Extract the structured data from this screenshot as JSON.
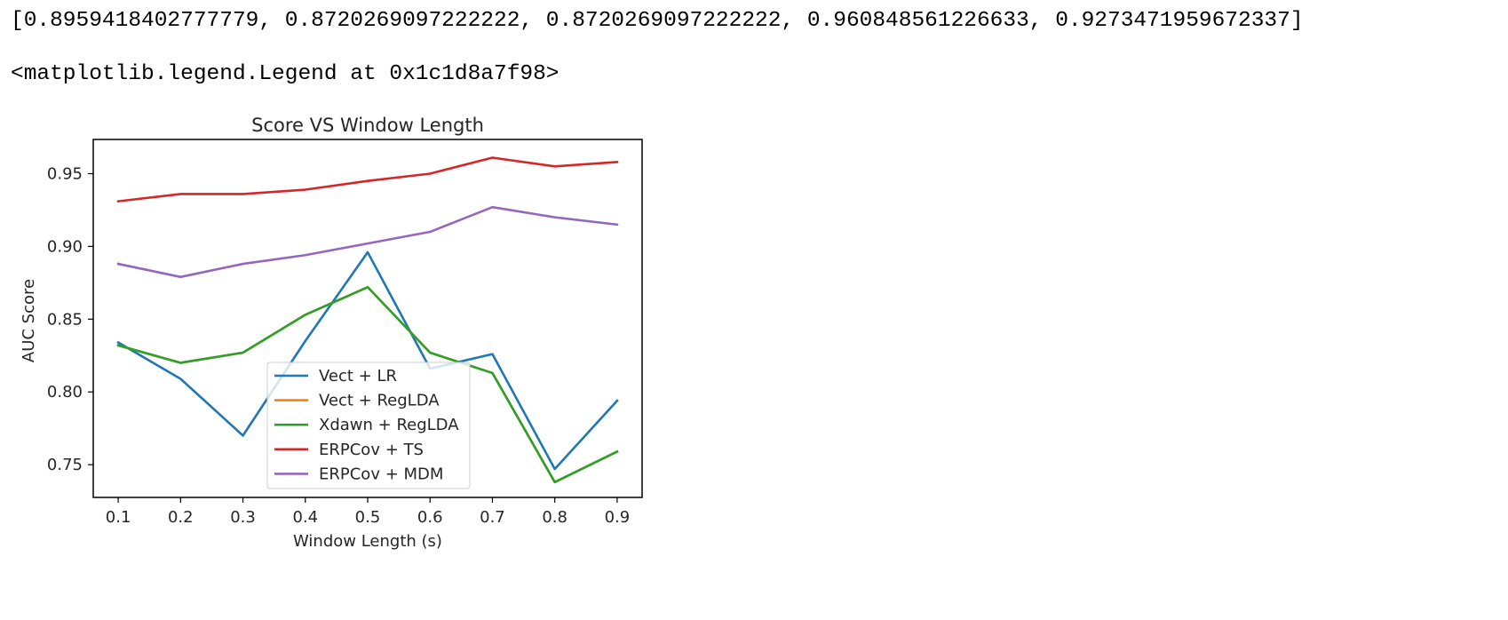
{
  "cell_output": {
    "array_line": "[0.8959418402777779, 0.8720269097222222, 0.8720269097222222, 0.960848561226633, 0.9273471959672337]",
    "repr_line": "<matplotlib.legend.Legend at 0x1c1d8a7f98>"
  },
  "chart_data": {
    "type": "line",
    "title": "Score VS Window Length",
    "xlabel": "Window Length (s)",
    "ylabel": "AUC Score",
    "x": [
      0.1,
      0.2,
      0.3,
      0.4,
      0.5,
      0.6,
      0.7,
      0.8,
      0.9
    ],
    "xticks": [
      "0.1",
      "0.2",
      "0.3",
      "0.4",
      "0.5",
      "0.6",
      "0.7",
      "0.8",
      "0.9"
    ],
    "yticks": [
      "0.75",
      "0.80",
      "0.85",
      "0.90",
      "0.95"
    ],
    "ytick_values": [
      0.75,
      0.8,
      0.85,
      0.9,
      0.95
    ],
    "xlim": [
      0.06,
      0.94
    ],
    "ylim": [
      0.7275,
      0.9735
    ],
    "grid": false,
    "legend_position": "lower-center",
    "series": [
      {
        "name": "Vect + LR",
        "color": "#1f77b4",
        "values": [
          0.834,
          0.809,
          0.77,
          0.835,
          0.896,
          0.816,
          0.826,
          0.747,
          0.794
        ]
      },
      {
        "name": "Vect + RegLDA",
        "color": "#ff7f0e",
        "values": [
          0.832,
          0.82,
          0.827,
          0.853,
          0.872,
          0.827,
          0.813,
          0.738,
          0.759
        ]
      },
      {
        "name": "Xdawn + RegLDA",
        "color": "#2ca02c",
        "values": [
          0.832,
          0.82,
          0.827,
          0.853,
          0.872,
          0.827,
          0.813,
          0.738,
          0.759
        ]
      },
      {
        "name": "ERPCov + TS",
        "color": "#d62728",
        "values": [
          0.931,
          0.936,
          0.936,
          0.939,
          0.945,
          0.95,
          0.961,
          0.955,
          0.958
        ]
      },
      {
        "name": "ERPCov + MDM",
        "color": "#9467bd",
        "values": [
          0.888,
          0.879,
          0.888,
          0.894,
          0.902,
          0.91,
          0.927,
          0.92,
          0.915
        ]
      }
    ]
  }
}
